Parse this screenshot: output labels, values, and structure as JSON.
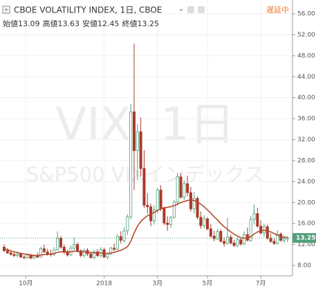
{
  "chart_data": {
    "type": "candlestick",
    "title": "CBOE VOLATILITY INDEX, 1日, CBOE",
    "status": "遅延中",
    "ohlc_labels": [
      "始値",
      "高値",
      "安値",
      "終値"
    ],
    "watermark": [
      "VIX, 1日",
      "S&P500 VIXインデックス"
    ],
    "up_color": "#53a07a",
    "down_color": "#a83a2c",
    "ma_color": "#b5482c",
    "candles": [
      [
        11.5,
        12.0,
        10.6,
        10.8
      ],
      [
        10.8,
        11.3,
        10.2,
        10.4
      ],
      [
        10.4,
        10.9,
        9.9,
        10.1
      ],
      [
        10.1,
        10.5,
        9.6,
        9.9
      ],
      [
        9.9,
        10.6,
        9.5,
        10.2
      ],
      [
        10.2,
        10.4,
        9.4,
        9.6
      ],
      [
        9.6,
        10.0,
        9.2,
        9.5
      ],
      [
        9.5,
        10.3,
        9.3,
        10.0
      ],
      [
        10.0,
        10.2,
        9.2,
        9.4
      ],
      [
        9.4,
        10.1,
        9.3,
        9.8
      ],
      [
        9.8,
        10.5,
        9.4,
        9.6
      ],
      [
        9.6,
        11.6,
        9.5,
        11.2
      ],
      [
        11.2,
        12.0,
        10.4,
        10.6
      ],
      [
        10.6,
        11.2,
        9.9,
        10.2
      ],
      [
        10.2,
        11.0,
        9.7,
        10.1
      ],
      [
        10.1,
        11.5,
        9.8,
        11.0
      ],
      [
        11.0,
        14.5,
        10.8,
        13.2
      ],
      [
        13.2,
        13.6,
        11.2,
        11.5
      ],
      [
        11.5,
        12.0,
        10.2,
        10.5
      ],
      [
        10.5,
        11.0,
        9.7,
        10.0
      ],
      [
        10.0,
        11.8,
        9.8,
        11.3
      ],
      [
        11.3,
        13.3,
        10.9,
        12.0
      ],
      [
        12.0,
        12.4,
        10.5,
        10.8
      ],
      [
        10.8,
        11.1,
        9.6,
        9.9
      ],
      [
        9.9,
        11.2,
        9.5,
        10.9
      ],
      [
        10.9,
        11.3,
        9.8,
        10.2
      ],
      [
        10.2,
        10.6,
        9.3,
        9.5
      ],
      [
        9.5,
        11.0,
        9.2,
        10.6
      ],
      [
        10.6,
        11.1,
        9.6,
        9.9
      ],
      [
        9.9,
        11.5,
        9.5,
        11.0
      ],
      [
        11.0,
        11.4,
        9.4,
        9.6
      ],
      [
        9.6,
        10.4,
        9.1,
        10.2
      ],
      [
        10.2,
        11.6,
        10.0,
        11.3
      ],
      [
        11.3,
        12.2,
        10.7,
        11.1
      ],
      [
        11.1,
        14.0,
        10.9,
        13.5
      ],
      [
        13.5,
        14.5,
        12.2,
        12.8
      ],
      [
        12.8,
        15.3,
        12.3,
        14.6
      ],
      [
        14.6,
        17.8,
        13.8,
        17.3
      ],
      [
        17.3,
        38.8,
        16.8,
        37.3
      ],
      [
        37.3,
        50.3,
        22.4,
        29.9
      ],
      [
        29.9,
        35.0,
        24.3,
        33.5
      ],
      [
        33.5,
        36.2,
        25.0,
        26.5
      ],
      [
        26.5,
        30.0,
        19.0,
        19.5
      ],
      [
        19.5,
        21.8,
        17.9,
        19.2
      ],
      [
        19.2,
        19.8,
        15.5,
        16.5
      ],
      [
        16.5,
        19.5,
        15.8,
        18.6
      ],
      [
        18.6,
        22.8,
        17.9,
        22.4
      ],
      [
        22.4,
        23.3,
        18.4,
        18.9
      ],
      [
        18.9,
        19.2,
        15.7,
        16.1
      ],
      [
        16.1,
        17.4,
        14.6,
        15.8
      ],
      [
        15.8,
        17.5,
        15.2,
        17.2
      ],
      [
        17.2,
        20.5,
        16.9,
        20.1
      ],
      [
        20.1,
        25.7,
        19.5,
        24.9
      ],
      [
        24.9,
        25.6,
        20.8,
        21.0
      ],
      [
        21.0,
        24.2,
        20.5,
        23.6
      ],
      [
        23.6,
        25.1,
        21.2,
        21.9
      ],
      [
        21.9,
        23.0,
        18.3,
        18.8
      ],
      [
        18.8,
        22.0,
        17.9,
        20.8
      ],
      [
        20.8,
        21.2,
        16.8,
        17.2
      ],
      [
        17.2,
        18.3,
        15.0,
        15.6
      ],
      [
        15.6,
        17.6,
        15.1,
        16.9
      ],
      [
        16.9,
        17.2,
        14.7,
        15.0
      ],
      [
        15.0,
        15.9,
        13.3,
        13.6
      ],
      [
        13.6,
        14.6,
        12.6,
        13.1
      ],
      [
        13.1,
        15.0,
        12.9,
        14.5
      ],
      [
        14.5,
        14.9,
        12.4,
        12.6
      ],
      [
        12.6,
        13.4,
        11.6,
        12.2
      ],
      [
        12.2,
        17.1,
        12.0,
        13.4
      ],
      [
        13.4,
        13.9,
        12.0,
        12.3
      ],
      [
        12.3,
        12.9,
        11.6,
        11.8
      ],
      [
        11.8,
        13.3,
        11.5,
        12.9
      ],
      [
        12.9,
        13.2,
        11.8,
        12.1
      ],
      [
        12.1,
        14.5,
        11.9,
        13.9
      ],
      [
        13.9,
        15.2,
        12.6,
        12.8
      ],
      [
        12.8,
        17.4,
        12.5,
        16.8
      ],
      [
        16.8,
        19.6,
        15.8,
        17.9
      ],
      [
        17.9,
        19.0,
        15.2,
        15.5
      ],
      [
        15.5,
        16.6,
        13.9,
        14.2
      ],
      [
        14.2,
        16.0,
        13.5,
        15.4
      ],
      [
        15.4,
        15.8,
        12.9,
        13.2
      ],
      [
        13.2,
        14.1,
        12.3,
        12.6
      ],
      [
        12.6,
        13.2,
        11.9,
        12.2
      ],
      [
        12.2,
        14.7,
        12.0,
        14.0
      ],
      [
        14.0,
        14.3,
        12.5,
        12.8
      ],
      [
        12.8,
        13.8,
        12.3,
        13.1
      ],
      [
        13.09,
        13.63,
        12.45,
        13.25
      ]
    ],
    "moving_average": [
      11.2,
      11.0,
      10.8,
      10.6,
      10.5,
      10.3,
      10.2,
      10.1,
      10.0,
      9.9,
      9.9,
      10.0,
      10.1,
      10.1,
      10.2,
      10.3,
      10.5,
      10.6,
      10.6,
      10.6,
      10.6,
      10.7,
      10.7,
      10.6,
      10.6,
      10.5,
      10.5,
      10.4,
      10.4,
      10.4,
      10.3,
      10.3,
      10.4,
      10.5,
      10.7,
      10.9,
      11.2,
      11.6,
      12.6,
      14.2,
      15.5,
      16.4,
      17.0,
      17.5,
      17.8,
      18.1,
      18.5,
      18.8,
      19.0,
      19.1,
      19.2,
      19.4,
      19.7,
      20.0,
      20.2,
      20.4,
      20.5,
      20.4,
      20.1,
      19.7,
      19.2,
      18.6,
      18.0,
      17.3,
      16.7,
      16.0,
      15.4,
      14.9,
      14.4,
      14.0,
      13.6,
      13.3,
      13.2,
      13.2,
      13.5,
      14.0,
      14.4,
      14.6,
      14.7,
      14.6,
      14.4,
      14.1,
      13.8,
      13.5,
      13.4,
      13.3
    ],
    "ylim": [
      8,
      56
    ],
    "yticks": [
      {
        "value": 8,
        "label": "8.00"
      },
      {
        "value": 12,
        "label": "12.00"
      },
      {
        "value": 16,
        "label": "16.00"
      },
      {
        "value": 20,
        "label": "20.00"
      },
      {
        "value": 24,
        "label": "24.00"
      },
      {
        "value": 28,
        "label": "28.00"
      },
      {
        "value": 32,
        "label": "32.00"
      },
      {
        "value": 36,
        "label": "36.00"
      },
      {
        "value": 40,
        "label": "40.00"
      },
      {
        "value": 44,
        "label": "44.00"
      },
      {
        "value": 48,
        "label": "48.00"
      },
      {
        "value": 52,
        "label": "52.00"
      },
      {
        "value": 56,
        "label": "56.00"
      }
    ],
    "xticks": [
      {
        "value": 6.5,
        "label": "10月"
      },
      {
        "value": 30,
        "label": "2018"
      },
      {
        "value": 46,
        "label": "3月"
      },
      {
        "value": 61,
        "label": "5月"
      },
      {
        "value": 77,
        "label": "7月"
      }
    ],
    "grid": true
  }
}
